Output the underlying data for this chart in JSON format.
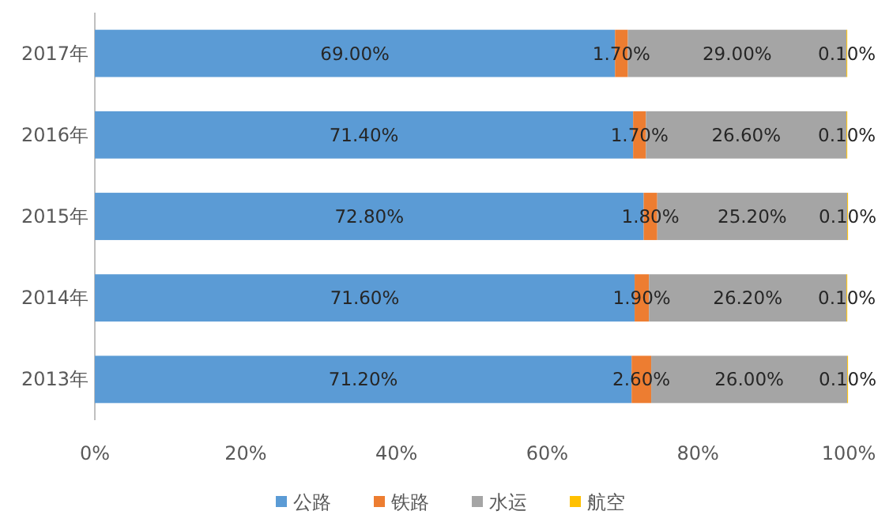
{
  "chart_data": {
    "type": "bar",
    "orientation": "horizontal",
    "stacked": true,
    "legend": "bottom",
    "categories": [
      "2017年",
      "2016年",
      "2015年",
      "2014年",
      "2013年"
    ],
    "xlim": [
      0,
      100
    ],
    "xticks": [
      {
        "value": 0,
        "label": "0%"
      },
      {
        "value": 20,
        "label": "20%"
      },
      {
        "value": 40,
        "label": "40%"
      },
      {
        "value": 60,
        "label": "60%"
      },
      {
        "value": 80,
        "label": "80%"
      },
      {
        "value": 100,
        "label": "100%"
      }
    ],
    "series": [
      {
        "name": "公路",
        "color": "#5b9bd5",
        "values": [
          69.0,
          71.4,
          72.8,
          71.6,
          71.2
        ],
        "value_labels": [
          "69.00%",
          "71.40%",
          "72.80%",
          "71.60%",
          "71.20%"
        ]
      },
      {
        "name": "铁路",
        "color": "#ed7d31",
        "values": [
          1.7,
          1.7,
          1.8,
          1.9,
          2.6
        ],
        "value_labels": [
          "1.70%",
          "1.70%",
          "1.80%",
          "1.90%",
          "2.60%"
        ]
      },
      {
        "name": "水运",
        "color": "#a5a5a5",
        "values": [
          29.0,
          26.6,
          25.2,
          26.2,
          26.0
        ],
        "value_labels": [
          "29.00%",
          "26.60%",
          "25.20%",
          "26.20%",
          "26.00%"
        ]
      },
      {
        "name": "航空",
        "color": "#ffc000",
        "values": [
          0.1,
          0.1,
          0.1,
          0.1,
          0.1
        ],
        "value_labels": [
          "0.10%",
          "0.10%",
          "0.10%",
          "0.10%",
          "0.10%"
        ]
      }
    ]
  }
}
